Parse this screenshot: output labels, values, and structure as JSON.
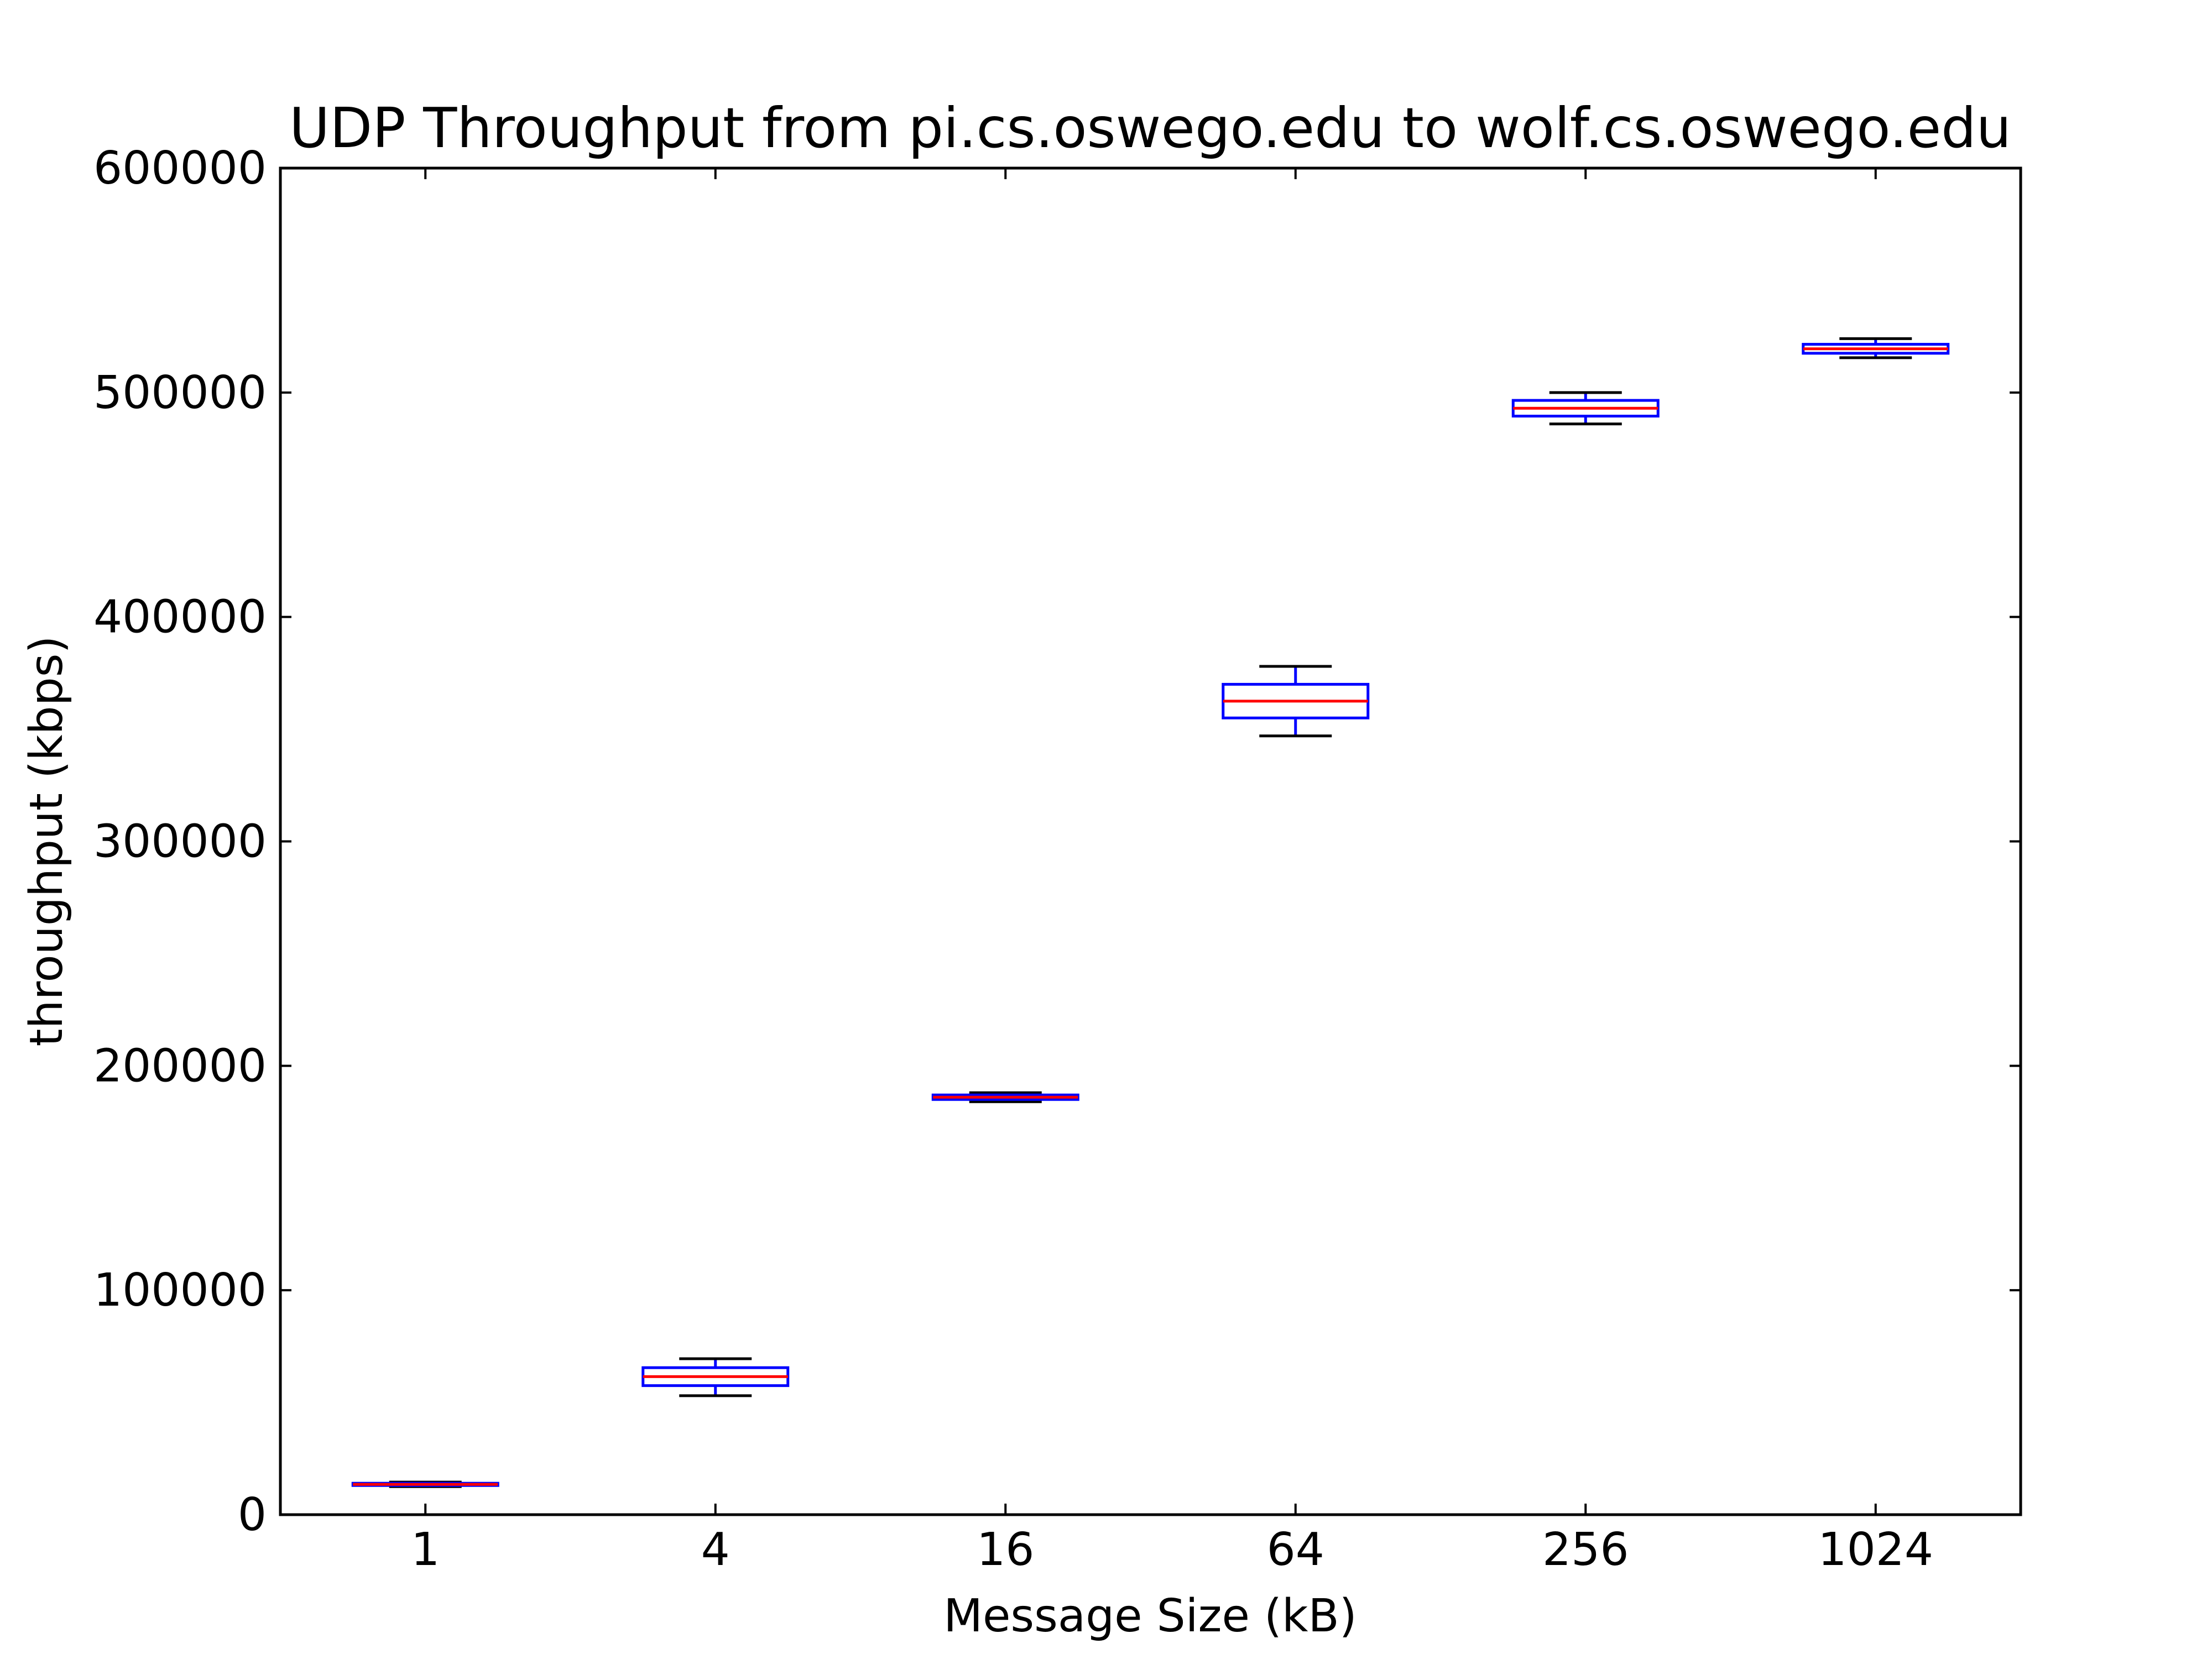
{
  "chart_data": {
    "type": "box",
    "title": "UDP Throughput from pi.cs.oswego.edu to wolf.cs.oswego.edu",
    "xlabel": "Message Size (kB)",
    "ylabel": "throughput (kbps)",
    "categories": [
      "1",
      "4",
      "16",
      "64",
      "256",
      "1024"
    ],
    "ylim": [
      0,
      600000
    ],
    "yticks": [
      "0",
      "100000",
      "200000",
      "300000",
      "400000",
      "500000",
      "600000"
    ],
    "grid": false,
    "boxes": [
      {
        "category": "1",
        "whislo": 12500,
        "q1": 13000,
        "med": 13500,
        "q3": 14000,
        "whishi": 14500
      },
      {
        "category": "4",
        "whislo": 53000,
        "q1": 57500,
        "med": 61500,
        "q3": 65500,
        "whishi": 69500
      },
      {
        "category": "16",
        "whislo": 184000,
        "q1": 185000,
        "med": 186000,
        "q3": 187000,
        "whishi": 188000
      },
      {
        "category": "64",
        "whislo": 347000,
        "q1": 355000,
        "med": 362500,
        "q3": 370000,
        "whishi": 378000
      },
      {
        "category": "256",
        "whislo": 486000,
        "q1": 489500,
        "med": 493000,
        "q3": 496500,
        "whishi": 500000
      },
      {
        "category": "1024",
        "whislo": 515500,
        "q1": 517500,
        "med": 519500,
        "q3": 521500,
        "whishi": 524000
      }
    ],
    "colors": {
      "box": "#0000ff",
      "median": "#ff0000",
      "whisker": "#0000ff",
      "cap": "#000000",
      "axes": "#000000"
    }
  }
}
